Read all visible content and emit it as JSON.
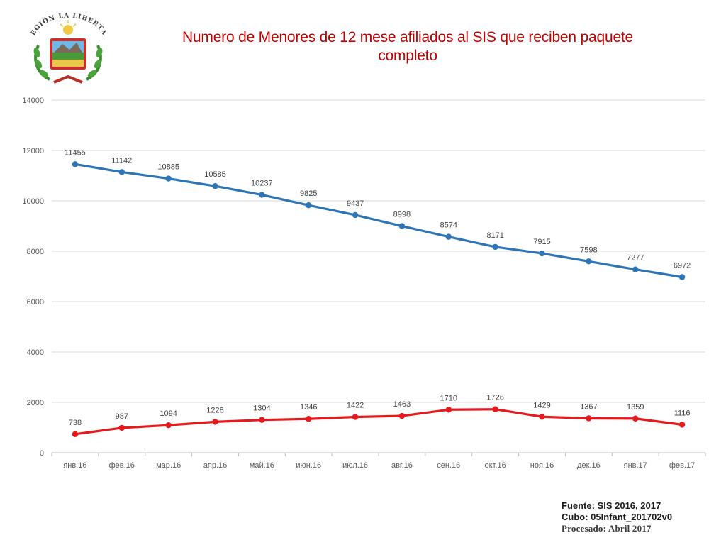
{
  "header": {
    "emblem_text": "REGIÓN LA LIBERTAD",
    "title_line1": "Numero de Menores de 12 mese afiliados al SIS que reciben paquete",
    "title_line2": "completo"
  },
  "footer": {
    "source": "Fuente: SIS 2016, 2017",
    "cube": "Cubo:  05Infant_201702v0",
    "processed": "Procesado: Abril 2017"
  },
  "colors": {
    "title": "#c00000",
    "series_blue": "#2e75b6",
    "series_red": "#e41a1c",
    "grid": "#d9d9d9",
    "tick_text": "#595959"
  },
  "chart_data": {
    "type": "line",
    "categories": [
      "янв.16",
      "фев.16",
      "мар.16",
      "апр.16",
      "май.16",
      "июн.16",
      "июл.16",
      "авг.16",
      "сен.16",
      "окт.16",
      "ноя.16",
      "дек.16",
      "янв.17",
      "фев.17"
    ],
    "series": [
      {
        "color": "#2e75b6",
        "values": [
          11455,
          11142,
          10885,
          10585,
          10237,
          9825,
          9437,
          8998,
          8574,
          8171,
          7915,
          7598,
          7277,
          6972
        ]
      },
      {
        "color": "#e41a1c",
        "values": [
          738,
          987,
          1094,
          1228,
          1304,
          1346,
          1422,
          1463,
          1710,
          1726,
          1429,
          1367,
          1359,
          1116
        ]
      }
    ],
    "ylim": [
      0,
      14000
    ],
    "yticks": [
      0,
      2000,
      4000,
      6000,
      8000,
      10000,
      12000,
      14000
    ],
    "grid": true,
    "data_labels": true,
    "legend": "none"
  }
}
